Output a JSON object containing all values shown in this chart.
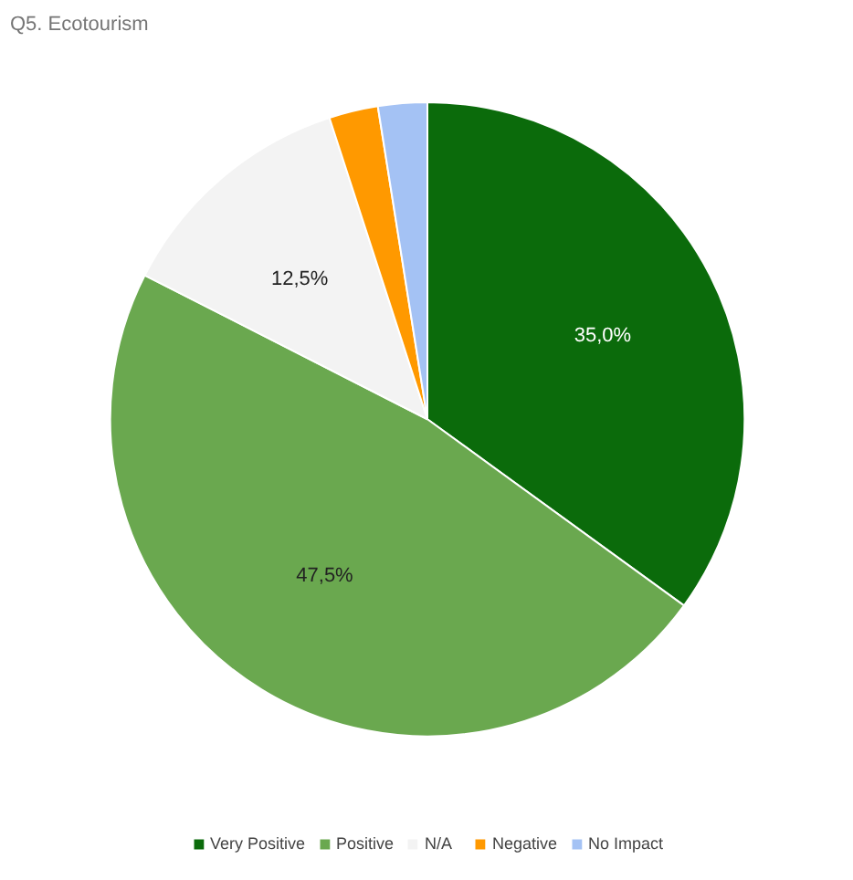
{
  "chart_data": {
    "type": "pie",
    "title": "Q5. Ecotourism",
    "categories": [
      "Very Positive",
      "Positive",
      "N/A",
      "Negative",
      "No Impact"
    ],
    "values": [
      35.0,
      47.5,
      12.5,
      2.5,
      2.5
    ],
    "colors": [
      "#0b6b0b",
      "#6aa84f",
      "#f3f3f3",
      "#ff9900",
      "#a4c2f4"
    ],
    "value_labels": [
      "35,0%",
      "47,5%",
      "12,5%",
      null,
      null
    ],
    "legend": "bottom"
  }
}
